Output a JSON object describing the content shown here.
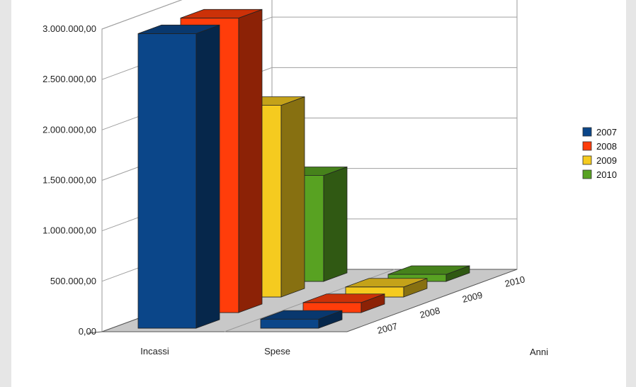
{
  "chart_data": {
    "type": "bar",
    "style": "3d-deep",
    "categories": [
      "Incassi",
      "Spese"
    ],
    "series": [
      {
        "name": "2007",
        "color": "#0b4689",
        "values": [
          2920000,
          90000
        ]
      },
      {
        "name": "2008",
        "color": "#ff3d0a",
        "values": [
          2920000,
          100000
        ]
      },
      {
        "name": "2009",
        "color": "#f5cb1f",
        "values": [
          1900000,
          100000
        ]
      },
      {
        "name": "2010",
        "color": "#58a222",
        "values": [
          1050000,
          70000
        ]
      }
    ],
    "y_ticks": [
      "0,00",
      "500.000,00",
      "1.000.000,00",
      "1.500.000,00",
      "2.000.000,00",
      "2.500.000,00",
      "3.000.000,00"
    ],
    "ylim": [
      0,
      3000000
    ],
    "depth_axis_label": "Anni",
    "depth_labels": [
      "2007",
      "2008",
      "2009",
      "2010"
    ],
    "grid": true,
    "legend_position": "right"
  }
}
